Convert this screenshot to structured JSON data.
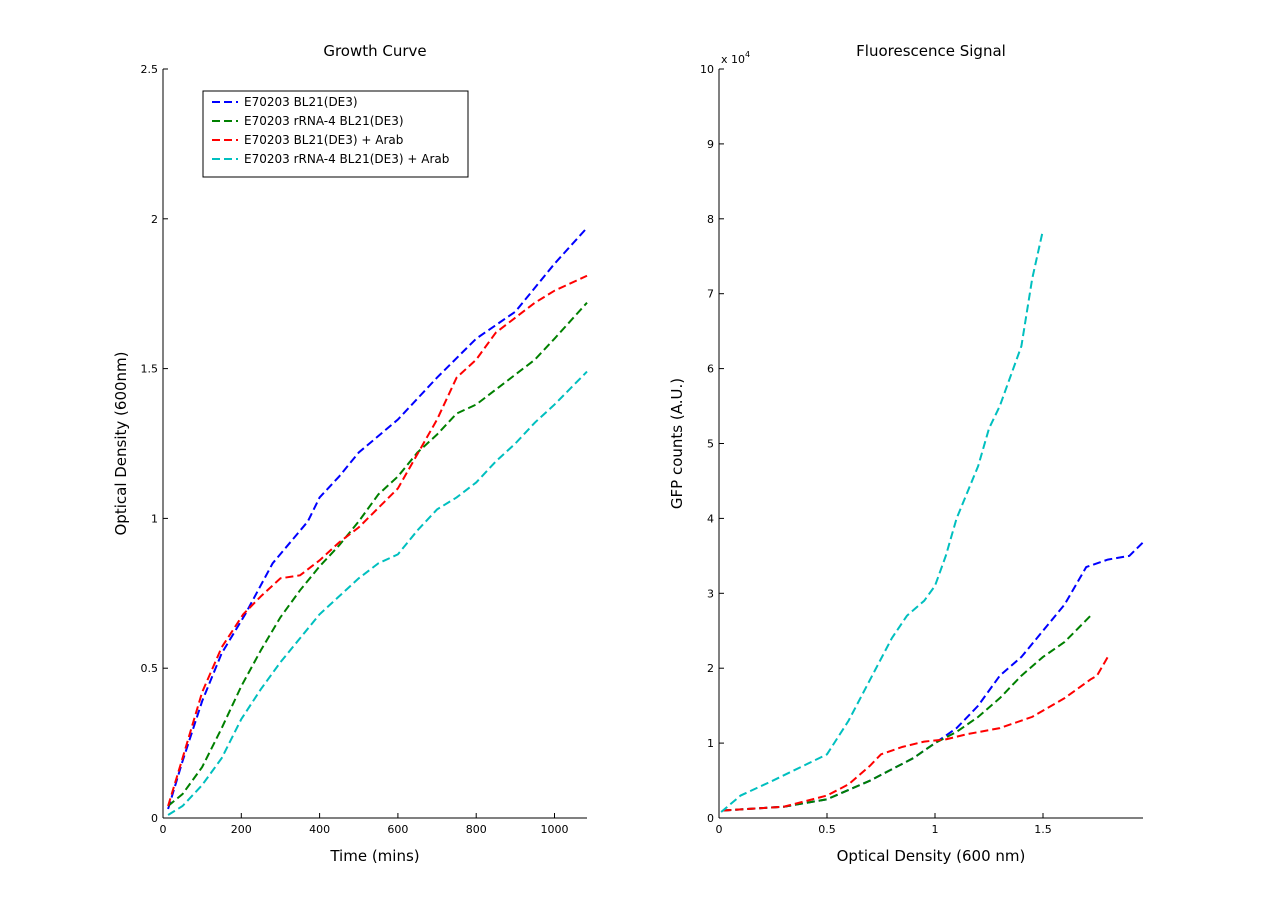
{
  "chart_data": [
    {
      "type": "line",
      "title": "Growth Curve",
      "xlabel": "Time (mins)",
      "ylabel": "Optical Density (600nm)",
      "xlim": [
        0,
        1083
      ],
      "ylim": [
        0,
        2.5
      ],
      "xticks": [
        0,
        200,
        400,
        600,
        800,
        1000
      ],
      "yticks": [
        0,
        0.5,
        1,
        1.5,
        2,
        2.5
      ],
      "xtick_labels": [
        "0",
        "200",
        "400",
        "600",
        "800",
        "1000"
      ],
      "ytick_labels": [
        "0",
        "0.5",
        "1",
        "1.5",
        "2",
        "2.5"
      ],
      "grid": false,
      "line_style": "dashed",
      "legend_position": "top-left",
      "series": [
        {
          "name": "E70203 BL21(DE3)",
          "color": "#0000ff",
          "x": [
            13,
            50,
            100,
            150,
            210,
            280,
            370,
            400,
            450,
            500,
            600,
            700,
            800,
            900,
            1000,
            1083
          ],
          "y": [
            0.03,
            0.19,
            0.39,
            0.55,
            0.68,
            0.85,
            0.99,
            1.07,
            1.14,
            1.22,
            1.33,
            1.47,
            1.6,
            1.69,
            1.85,
            1.97
          ]
        },
        {
          "name": "E70203 rRNA-4 BL21(DE3)",
          "color": "#008000",
          "x": [
            13,
            50,
            100,
            150,
            200,
            250,
            300,
            350,
            400,
            450,
            500,
            550,
            600,
            650,
            700,
            750,
            800,
            850,
            900,
            950,
            1000,
            1083
          ],
          "y": [
            0.04,
            0.08,
            0.17,
            0.3,
            0.44,
            0.56,
            0.67,
            0.76,
            0.84,
            0.91,
            0.99,
            1.08,
            1.14,
            1.22,
            1.28,
            1.35,
            1.38,
            1.43,
            1.48,
            1.53,
            1.6,
            1.72
          ]
        },
        {
          "name": "E70203 BL21(DE3) + Arab",
          "color": "#ff0000",
          "x": [
            13,
            50,
            100,
            150,
            205,
            250,
            300,
            350,
            400,
            450,
            500,
            600,
            700,
            750,
            800,
            850,
            900,
            950,
            1000,
            1083
          ],
          "y": [
            0.04,
            0.2,
            0.42,
            0.57,
            0.68,
            0.74,
            0.8,
            0.81,
            0.86,
            0.92,
            0.97,
            1.1,
            1.33,
            1.47,
            1.53,
            1.62,
            1.67,
            1.72,
            1.76,
            1.81
          ]
        },
        {
          "name": "E70203 rRNA-4 BL21(DE3) + Arab",
          "color": "#00bfbf",
          "x": [
            13,
            50,
            100,
            150,
            200,
            250,
            300,
            350,
            400,
            450,
            500,
            550,
            600,
            650,
            700,
            750,
            800,
            850,
            900,
            950,
            1000,
            1083
          ],
          "y": [
            0.01,
            0.04,
            0.11,
            0.2,
            0.33,
            0.43,
            0.52,
            0.6,
            0.68,
            0.74,
            0.8,
            0.85,
            0.88,
            0.96,
            1.03,
            1.07,
            1.12,
            1.19,
            1.25,
            1.32,
            1.38,
            1.49
          ]
        }
      ]
    },
    {
      "type": "line",
      "title": "Fluorescence Signal",
      "xlabel": "Optical Density (600 nm)",
      "ylabel": "GFP counts (A.U.)",
      "y_exponent_label": "x 10",
      "y_exponent": "4",
      "xlim": [
        0,
        1.963
      ],
      "ylim": [
        0,
        10
      ],
      "xticks": [
        0,
        0.5,
        1,
        1.5
      ],
      "yticks": [
        0,
        1,
        2,
        3,
        4,
        5,
        6,
        7,
        8,
        9,
        10
      ],
      "xtick_labels": [
        "0",
        "0.5",
        "1",
        "1.5"
      ],
      "ytick_labels": [
        "0",
        "1",
        "2",
        "3",
        "4",
        "5",
        "6",
        "7",
        "8",
        "9",
        "10"
      ],
      "grid": false,
      "line_style": "dashed",
      "series": [
        {
          "color": "#0000ff",
          "x": [
            0.02,
            0.3,
            0.5,
            0.7,
            0.9,
            1.0,
            1.1,
            1.2,
            1.3,
            1.4,
            1.5,
            1.6,
            1.7,
            1.8,
            1.9,
            1.97
          ],
          "y": [
            0.1,
            0.15,
            0.25,
            0.5,
            0.8,
            1.0,
            1.2,
            1.5,
            1.9,
            2.15,
            2.5,
            2.85,
            3.35,
            3.45,
            3.5,
            3.7
          ]
        },
        {
          "color": "#008000",
          "x": [
            0.02,
            0.3,
            0.5,
            0.7,
            0.9,
            1.0,
            1.1,
            1.2,
            1.3,
            1.4,
            1.5,
            1.6,
            1.72
          ],
          "y": [
            0.1,
            0.15,
            0.25,
            0.5,
            0.8,
            1.0,
            1.15,
            1.35,
            1.6,
            1.9,
            2.15,
            2.35,
            2.7
          ]
        },
        {
          "color": "#ff0000",
          "x": [
            0.02,
            0.3,
            0.5,
            0.6,
            0.7,
            0.75,
            0.85,
            0.95,
            1.05,
            1.15,
            1.3,
            1.45,
            1.6,
            1.72,
            1.75,
            1.8
          ],
          "y": [
            0.1,
            0.15,
            0.3,
            0.45,
            0.7,
            0.85,
            0.95,
            1.02,
            1.05,
            1.12,
            1.2,
            1.35,
            1.6,
            1.85,
            1.9,
            2.15
          ]
        },
        {
          "color": "#00bfbf",
          "x": [
            0.01,
            0.1,
            0.25,
            0.5,
            0.6,
            0.7,
            0.8,
            0.87,
            0.95,
            1.0,
            1.05,
            1.1,
            1.2,
            1.25,
            1.3,
            1.4,
            1.45,
            1.5
          ],
          "y": [
            0.08,
            0.3,
            0.5,
            0.85,
            1.3,
            1.85,
            2.4,
            2.7,
            2.9,
            3.1,
            3.5,
            4.0,
            4.7,
            5.2,
            5.5,
            6.3,
            7.2,
            7.85
          ]
        }
      ]
    }
  ]
}
